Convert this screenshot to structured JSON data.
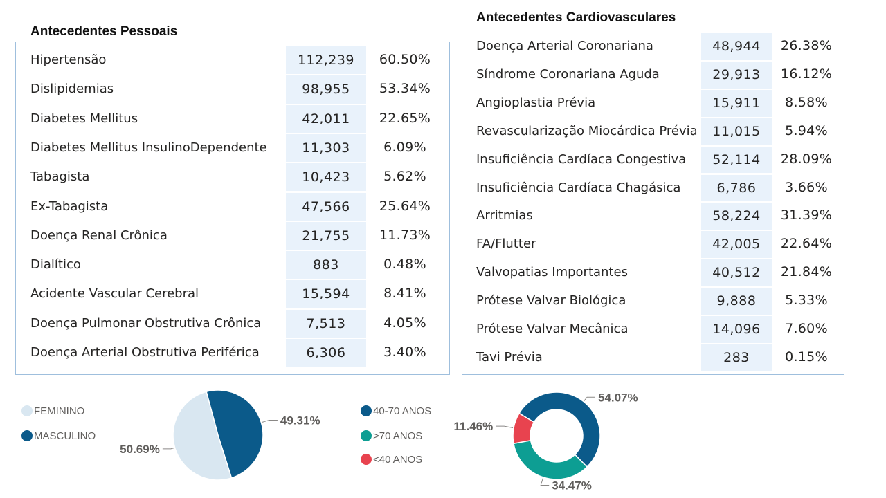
{
  "pessoais": {
    "title": "Antecedentes Pessoais",
    "rows": [
      {
        "label": "Hipertensão",
        "count": "112,239",
        "pct": "60.50%"
      },
      {
        "label": "Dislipidemias",
        "count": "98,955",
        "pct": "53.34%"
      },
      {
        "label": "Diabetes Mellitus",
        "count": "42,011",
        "pct": "22.65%"
      },
      {
        "label": "Diabetes Mellitus InsulinoDependente",
        "count": "11,303",
        "pct": "6.09%"
      },
      {
        "label": "Tabagista",
        "count": "10,423",
        "pct": "5.62%"
      },
      {
        "label": "Ex-Tabagista",
        "count": "47,566",
        "pct": "25.64%"
      },
      {
        "label": "Doença Renal Crônica",
        "count": "21,755",
        "pct": "11.73%"
      },
      {
        "label": "Dialítico",
        "count": "883",
        "pct": "0.48%"
      },
      {
        "label": "Acidente Vascular Cerebral",
        "count": "15,594",
        "pct": "8.41%"
      },
      {
        "label": "Doença Pulmonar Obstrutiva Crônica",
        "count": "7,513",
        "pct": "4.05%"
      },
      {
        "label": "Doença Arterial Obstrutiva Periférica",
        "count": "6,306",
        "pct": "3.40%"
      }
    ]
  },
  "cardio": {
    "title": "Antecedentes Cardiovasculares",
    "rows": [
      {
        "label": "Doença Arterial Coronariana",
        "count": "48,944",
        "pct": "26.38%"
      },
      {
        "label": "Síndrome Coronariana Aguda",
        "count": "29,913",
        "pct": "16.12%"
      },
      {
        "label": "Angioplastia Prévia",
        "count": "15,911",
        "pct": "8.58%"
      },
      {
        "label": "Revascularização Miocárdica Prévia",
        "count": "11,015",
        "pct": "5.94%"
      },
      {
        "label": "Insuficiência Cardíaca Congestiva",
        "count": "52,114",
        "pct": "28.09%"
      },
      {
        "label": "Insuficiência Cardíaca Chagásica",
        "count": "6,786",
        "pct": "3.66%"
      },
      {
        "label": "Arritmias",
        "count": "58,224",
        "pct": "31.39%"
      },
      {
        "label": "FA/Flutter",
        "count": "42,005",
        "pct": "22.64%"
      },
      {
        "label": "Valvopatias Importantes",
        "count": "40,512",
        "pct": "21.84%"
      },
      {
        "label": "Prótese Valvar Biológica",
        "count": "9,888",
        "pct": "5.33%"
      },
      {
        "label": "Prótese Valvar Mecânica",
        "count": "14,096",
        "pct": "7.60%"
      },
      {
        "label": "Tavi Prévia",
        "count": "283",
        "pct": "0.15%"
      }
    ]
  },
  "colors": {
    "navy": "#0b5a8a",
    "light": "#d9e7f1",
    "teal": "#0d9e93",
    "red": "#e8434f",
    "cell_bg": "#e9f2fb",
    "border": "#9fbfdd"
  },
  "chart_data": [
    {
      "type": "pie",
      "slices": [
        {
          "name": "FEMININO",
          "value": 50.69,
          "label": "50.69%",
          "color": "#d9e7f1"
        },
        {
          "name": "MASCULINO",
          "value": 49.31,
          "label": "49.31%",
          "color": "#0b5a8a"
        }
      ],
      "legend": [
        "FEMININO",
        "MASCULINO"
      ],
      "legend_position": "left"
    },
    {
      "type": "pie",
      "donut": true,
      "slices": [
        {
          "name": "40-70 ANOS",
          "value": 54.07,
          "label": "54.07%",
          "color": "#0b5a8a"
        },
        {
          "name": ">70 ANOS",
          "value": 34.47,
          "label": "34.47%",
          "color": "#0d9e93"
        },
        {
          "name": "<40 ANOS",
          "value": 11.46,
          "label": "11.46%",
          "color": "#e8434f"
        }
      ],
      "legend": [
        "40-70 ANOS",
        ">70 ANOS",
        "<40 ANOS"
      ],
      "legend_position": "left"
    }
  ]
}
